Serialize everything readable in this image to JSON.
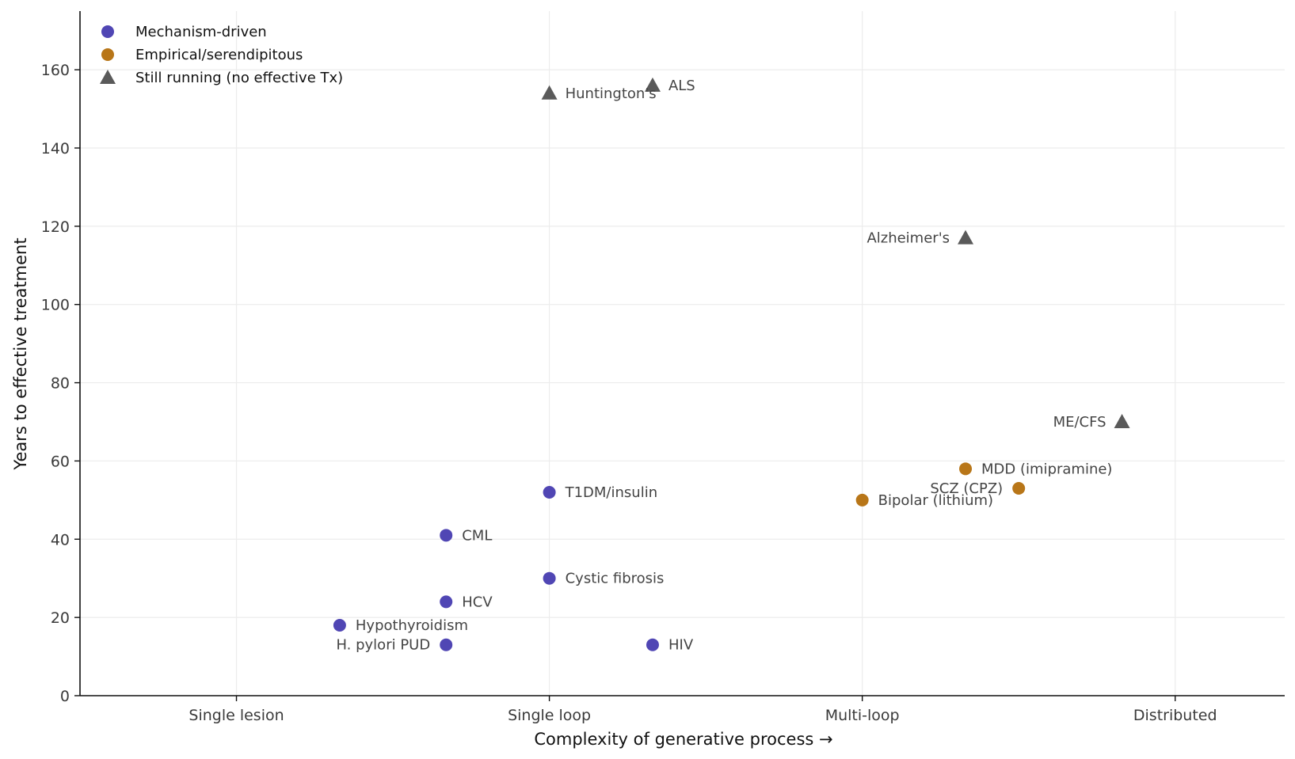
{
  "chart_data": {
    "type": "scatter",
    "xlabel": "Complexity of generative process  →",
    "ylabel": "Years to effective treatment",
    "x_categories": [
      "Single lesion",
      "Single loop",
      "Multi-loop",
      "Distributed"
    ],
    "xlim": [
      -0.5,
      3.35
    ],
    "ylim": [
      0,
      175
    ],
    "y_ticks": [
      0,
      20,
      40,
      60,
      80,
      100,
      120,
      140,
      160
    ],
    "grid": true,
    "legend_placement": "top-left",
    "colors": {
      "mechanism": "#5046b4",
      "empirical": "#b87618",
      "running": "#5a5a5a"
    },
    "series": [
      {
        "name": "Mechanism-driven",
        "marker": "circle",
        "color_key": "mechanism",
        "points": [
          {
            "label": "Hypothyroidism",
            "x": 0.33,
            "y": 18,
            "label_side": "right"
          },
          {
            "label": "H. pylori PUD",
            "x": 0.67,
            "y": 13,
            "label_side": "left"
          },
          {
            "label": "HCV",
            "x": 0.67,
            "y": 24,
            "label_side": "right"
          },
          {
            "label": "CML",
            "x": 0.67,
            "y": 41,
            "label_side": "right"
          },
          {
            "label": "Cystic fibrosis",
            "x": 1.0,
            "y": 30,
            "label_side": "right"
          },
          {
            "label": "T1DM/insulin",
            "x": 1.0,
            "y": 52,
            "label_side": "right"
          },
          {
            "label": "HIV",
            "x": 1.33,
            "y": 13,
            "label_side": "right"
          }
        ]
      },
      {
        "name": "Empirical/serendipitous",
        "marker": "circle",
        "color_key": "empirical",
        "points": [
          {
            "label": "Bipolar (lithium)",
            "x": 2.0,
            "y": 50,
            "label_side": "right"
          },
          {
            "label": "MDD (imipramine)",
            "x": 2.33,
            "y": 58,
            "label_side": "right"
          },
          {
            "label": "SCZ (CPZ)",
            "x": 2.5,
            "y": 53,
            "label_side": "left"
          }
        ]
      },
      {
        "name": "Still running (no effective Tx)",
        "marker": "triangle",
        "color_key": "running",
        "points": [
          {
            "label": "Huntington's",
            "x": 1.0,
            "y": 154,
            "label_side": "right"
          },
          {
            "label": "ALS",
            "x": 1.33,
            "y": 156,
            "label_side": "right"
          },
          {
            "label": "Alzheimer's",
            "x": 2.33,
            "y": 117,
            "label_side": "left"
          },
          {
            "label": "ME/CFS",
            "x": 2.83,
            "y": 70,
            "label_side": "left"
          }
        ]
      }
    ]
  }
}
